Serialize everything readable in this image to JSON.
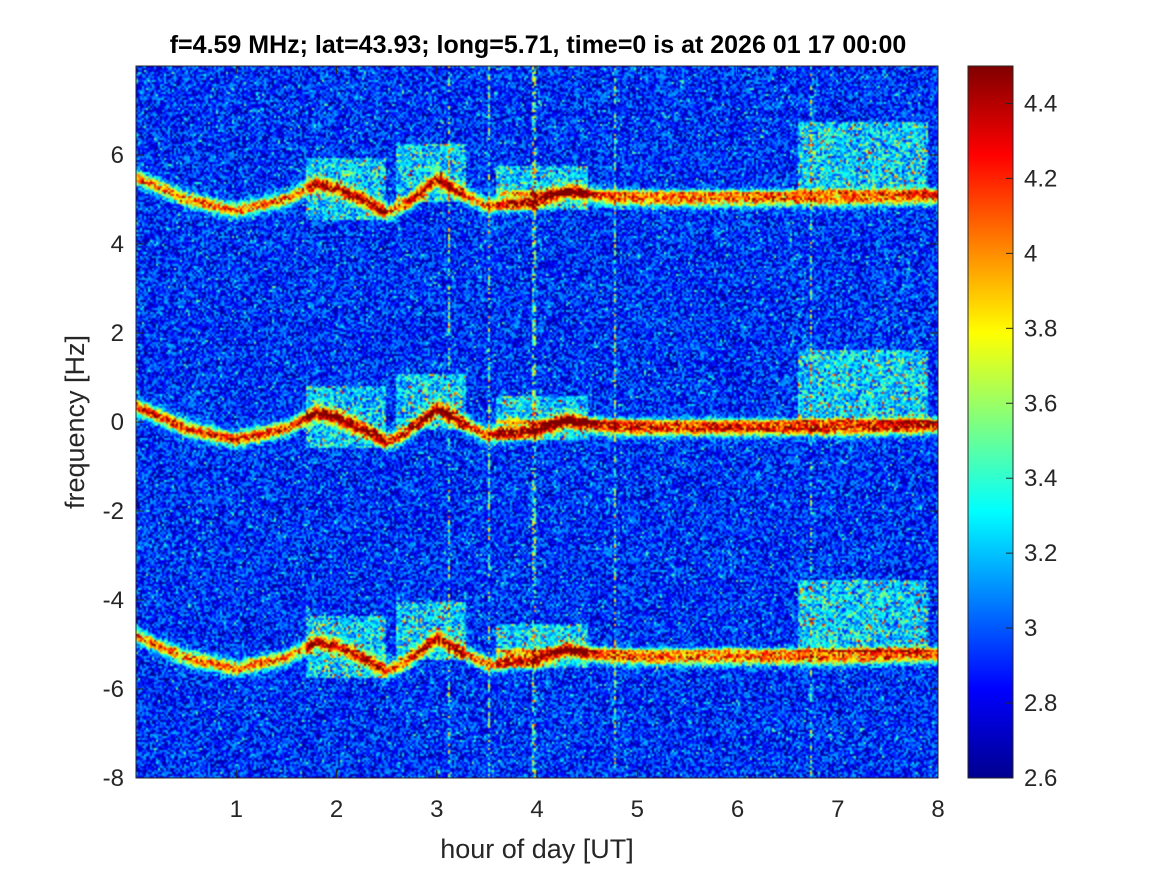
{
  "chart_data": {
    "type": "heatmap",
    "title": "f=4.59 MHz;  lat=43.93; long=5.71, time=0 is at 2026 01 17 00:00",
    "xlabel": "hour of day [UT]",
    "ylabel": "frequency [Hz]",
    "xlim": [
      0,
      8
    ],
    "ylim": [
      -8,
      8
    ],
    "x_ticks": [
      "1",
      "2",
      "3",
      "4",
      "5",
      "6",
      "7",
      "8"
    ],
    "y_ticks": [
      "-8",
      "-6",
      "-4",
      "-2",
      "0",
      "2",
      "4",
      "6"
    ],
    "colorbar": {
      "range": [
        2.6,
        4.5
      ],
      "colormap": "jet",
      "ticks": [
        "2.6",
        "2.8",
        "3",
        "3.2",
        "3.4",
        "3.6",
        "3.8",
        "4",
        "4.2",
        "4.4"
      ]
    },
    "background_level": 2.9,
    "band_offsets_hz": [
      5.15,
      0,
      -5.15
    ],
    "traces": [
      {
        "role": "doppler-trace",
        "points": [
          [
            0,
            0.35
          ],
          [
            0.5,
            -0.15
          ],
          [
            1,
            -0.4
          ],
          [
            1.5,
            -0.15
          ],
          [
            1.8,
            0.2
          ],
          [
            2.0,
            0.1
          ],
          [
            2.3,
            -0.2
          ],
          [
            2.5,
            -0.45
          ],
          [
            2.7,
            -0.25
          ],
          [
            3.0,
            0.3
          ],
          [
            3.2,
            0.05
          ],
          [
            3.5,
            -0.3
          ],
          [
            4.0,
            -0.2
          ],
          [
            4.3,
            0.05
          ],
          [
            4.6,
            -0.1
          ],
          [
            5.0,
            -0.15
          ],
          [
            6.0,
            -0.15
          ],
          [
            7.0,
            -0.15
          ],
          [
            8.0,
            -0.1
          ]
        ]
      }
    ],
    "spread_regions": [
      {
        "x": [
          1.7,
          2.5
        ],
        "f": [
          -0.6,
          0.8
        ]
      },
      {
        "x": [
          2.6,
          3.3
        ],
        "f": [
          -0.2,
          1.1
        ]
      },
      {
        "x": [
          3.6,
          4.5
        ],
        "f": [
          -0.4,
          0.6
        ]
      },
      {
        "x": [
          6.6,
          7.9
        ],
        "f": [
          0,
          1.6
        ]
      }
    ],
    "vertical_streaks": [
      3.13,
      3.52,
      3.97,
      4.78,
      6.73
    ]
  }
}
